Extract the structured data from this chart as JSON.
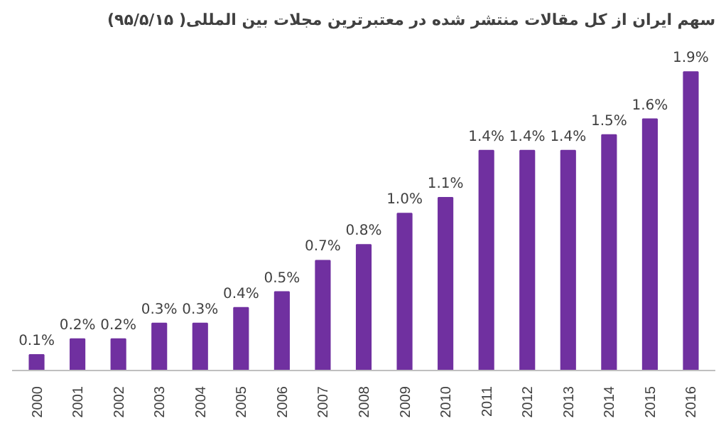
{
  "chart_data": {
    "type": "bar",
    "title": "سهم ایران از کل مقالات منتشر شده در معتبرترین مجلات بین المللی( ۹۵/۵/۱۵)",
    "categories": [
      "2000",
      "2001",
      "2002",
      "2003",
      "2004",
      "2005",
      "2006",
      "2007",
      "2008",
      "2009",
      "2010",
      "2011",
      "2012",
      "2013",
      "2014",
      "2015",
      "2016"
    ],
    "values": [
      0.1,
      0.2,
      0.2,
      0.3,
      0.3,
      0.4,
      0.5,
      0.7,
      0.8,
      1.0,
      1.1,
      1.4,
      1.4,
      1.4,
      1.5,
      1.6,
      1.9
    ],
    "value_labels": [
      "0.1%",
      "0.2%",
      "0.2%",
      "0.3%",
      "0.3%",
      "0.4%",
      "0.5%",
      "0.7%",
      "0.8%",
      "1.0%",
      "1.1%",
      "1.4%",
      "1.4%",
      "1.4%",
      "1.5%",
      "1.6%",
      "1.9%"
    ],
    "color": "#7030a0",
    "grid": false
  }
}
